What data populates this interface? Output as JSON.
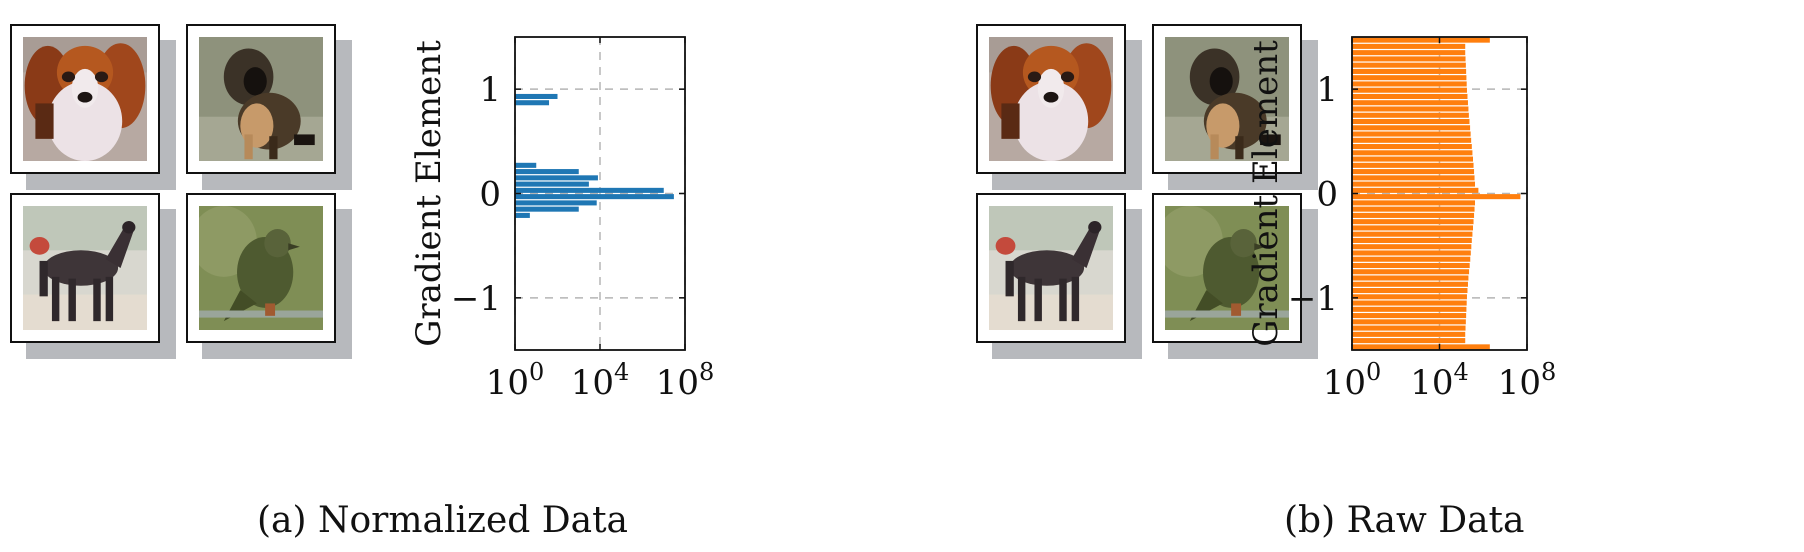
{
  "panels": [
    {
      "caption": "(a) Normalized Data",
      "images": [
        "dog-spaniel",
        "dog-dark",
        "horse",
        "bird"
      ]
    },
    {
      "caption": "(b) Raw Data",
      "images": [
        "dog-spaniel",
        "dog-dark",
        "horse",
        "bird"
      ]
    }
  ],
  "chart_data": [
    {
      "type": "bar",
      "orientation": "horizontal",
      "title": "",
      "xlabel": "",
      "ylabel": "Gradient Element",
      "xscale": "log",
      "xlim": [
        1,
        100000000
      ],
      "ylim": [
        -1.5,
        1.5
      ],
      "xticks": [
        {
          "value": 1,
          "base": "10",
          "exp": "0"
        },
        {
          "value": 10000,
          "base": "10",
          "exp": "4"
        },
        {
          "value": 100000000,
          "base": "10",
          "exp": "8"
        }
      ],
      "yticks": [
        {
          "value": 1,
          "label": "1"
        },
        {
          "value": 0,
          "label": "0"
        },
        {
          "value": -1,
          "label": "−1"
        }
      ],
      "grid": true,
      "color": "#1f77b4",
      "bin_width": 0.06,
      "bins": [
        {
          "y": 0.93,
          "count": 100
        },
        {
          "y": 0.87,
          "count": 40
        },
        {
          "y": 0.27,
          "count": 10
        },
        {
          "y": 0.21,
          "count": 1000
        },
        {
          "y": 0.15,
          "count": 8000
        },
        {
          "y": 0.09,
          "count": 3000
        },
        {
          "y": 0.03,
          "count": 10000000
        },
        {
          "y": -0.03,
          "count": 30000000
        },
        {
          "y": -0.09,
          "count": 7000
        },
        {
          "y": -0.15,
          "count": 1000
        },
        {
          "y": -0.21,
          "count": 5
        }
      ]
    },
    {
      "type": "bar",
      "orientation": "horizontal",
      "title": "",
      "xlabel": "",
      "ylabel": "Gradient Element",
      "xscale": "log",
      "xlim": [
        1,
        100000000
      ],
      "ylim": [
        -1.5,
        1.5
      ],
      "xticks": [
        {
          "value": 1,
          "base": "10",
          "exp": "0"
        },
        {
          "value": 10000,
          "base": "10",
          "exp": "4"
        },
        {
          "value": 100000000,
          "base": "10",
          "exp": "8"
        }
      ],
      "yticks": [
        {
          "value": 1,
          "label": "1"
        },
        {
          "value": 0,
          "label": "0"
        },
        {
          "value": -1,
          "label": "−1"
        }
      ],
      "grid": true,
      "color": "#ff7f0e",
      "bin_width": 0.06,
      "bins": [
        {
          "y": 1.47,
          "count": 2000000
        },
        {
          "y": 1.41,
          "count": 150000
        },
        {
          "y": 1.35,
          "count": 150000
        },
        {
          "y": 1.29,
          "count": 155000
        },
        {
          "y": 1.23,
          "count": 160000
        },
        {
          "y": 1.17,
          "count": 165000
        },
        {
          "y": 1.11,
          "count": 170000
        },
        {
          "y": 1.05,
          "count": 175000
        },
        {
          "y": 0.99,
          "count": 180000
        },
        {
          "y": 0.93,
          "count": 190000
        },
        {
          "y": 0.87,
          "count": 200000
        },
        {
          "y": 0.81,
          "count": 210000
        },
        {
          "y": 0.75,
          "count": 220000
        },
        {
          "y": 0.69,
          "count": 235000
        },
        {
          "y": 0.63,
          "count": 250000
        },
        {
          "y": 0.57,
          "count": 265000
        },
        {
          "y": 0.51,
          "count": 280000
        },
        {
          "y": 0.45,
          "count": 300000
        },
        {
          "y": 0.39,
          "count": 320000
        },
        {
          "y": 0.33,
          "count": 340000
        },
        {
          "y": 0.27,
          "count": 360000
        },
        {
          "y": 0.21,
          "count": 380000
        },
        {
          "y": 0.15,
          "count": 400000
        },
        {
          "y": 0.09,
          "count": 420000
        },
        {
          "y": 0.03,
          "count": 600000
        },
        {
          "y": -0.03,
          "count": 50000000
        },
        {
          "y": -0.09,
          "count": 420000
        },
        {
          "y": -0.15,
          "count": 400000
        },
        {
          "y": -0.21,
          "count": 380000
        },
        {
          "y": -0.27,
          "count": 360000
        },
        {
          "y": -0.33,
          "count": 340000
        },
        {
          "y": -0.39,
          "count": 320000
        },
        {
          "y": -0.45,
          "count": 300000
        },
        {
          "y": -0.51,
          "count": 285000
        },
        {
          "y": -0.57,
          "count": 270000
        },
        {
          "y": -0.63,
          "count": 255000
        },
        {
          "y": -0.69,
          "count": 240000
        },
        {
          "y": -0.75,
          "count": 225000
        },
        {
          "y": -0.81,
          "count": 210000
        },
        {
          "y": -0.87,
          "count": 200000
        },
        {
          "y": -0.93,
          "count": 190000
        },
        {
          "y": -0.99,
          "count": 180000
        },
        {
          "y": -1.05,
          "count": 175000
        },
        {
          "y": -1.11,
          "count": 170000
        },
        {
          "y": -1.17,
          "count": 165000
        },
        {
          "y": -1.23,
          "count": 160000
        },
        {
          "y": -1.29,
          "count": 155000
        },
        {
          "y": -1.35,
          "count": 150000
        },
        {
          "y": -1.41,
          "count": 150000
        },
        {
          "y": -1.47,
          "count": 2000000
        }
      ]
    }
  ]
}
